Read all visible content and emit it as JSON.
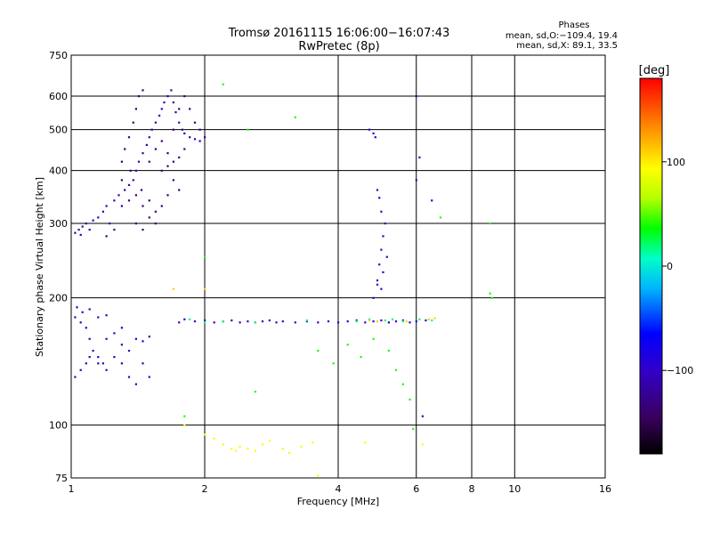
{
  "chart_data": {
    "type": "scatter",
    "title": "Tromsø 20161115 16:06:00−16:07:43",
    "subtitle": "RwPretec (8p)",
    "xlabel": "Frequency [MHz]",
    "ylabel": "Stationary phase Virtual Height [km]",
    "x_scale": "log",
    "y_scale": "log",
    "xlim": [
      1,
      16
    ],
    "ylim": [
      75,
      750
    ],
    "x_ticks": [
      1,
      2,
      4,
      6,
      8,
      10,
      16
    ],
    "x_tick_labels": [
      "1",
      "2",
      "4",
      "6",
      "8",
      "10",
      "16"
    ],
    "y_ticks": [
      75,
      100,
      200,
      300,
      400,
      500,
      600,
      750
    ],
    "y_tick_labels": [
      "75",
      "100",
      "200",
      "300",
      "400",
      "500",
      "600",
      "750"
    ],
    "grid": true,
    "color_variable": "Phase [deg]",
    "colorbar": {
      "label": "[deg]",
      "ticks": [
        -100,
        0,
        100
      ],
      "tick_labels": [
        "−100",
        "0",
        "100"
      ],
      "range": [
        -180,
        180
      ],
      "colors": [
        "#000000",
        "#5a008c",
        "#0000ff",
        "#00ffff",
        "#00ff00",
        "#ffff00",
        "#ff8000",
        "#ff0000"
      ]
    },
    "phase_stats": {
      "header": "Phases",
      "line_o": "mean, sd,O:−109.4, 19.4",
      "line_x": "mean, sd,X:  89.1, 33.5",
      "o_mean": -109.4,
      "o_sd": 19.4,
      "x_mean": 89.1,
      "x_sd": 33.5
    },
    "series": [
      {
        "label_hint": "F-layer trace (blue, O-mode)",
        "phase_deg": -115,
        "points": [
          [
            1.02,
            285
          ],
          [
            1.04,
            290
          ],
          [
            1.05,
            282
          ],
          [
            1.06,
            295
          ],
          [
            1.08,
            300
          ],
          [
            1.1,
            290
          ],
          [
            1.12,
            305
          ],
          [
            1.15,
            310
          ],
          [
            1.18,
            320
          ],
          [
            1.2,
            330
          ],
          [
            1.22,
            300
          ],
          [
            1.25,
            340
          ],
          [
            1.28,
            350
          ],
          [
            1.3,
            330
          ],
          [
            1.32,
            360
          ],
          [
            1.35,
            370
          ],
          [
            1.38,
            380
          ],
          [
            1.4,
            400
          ],
          [
            1.42,
            420
          ],
          [
            1.45,
            440
          ],
          [
            1.48,
            460
          ],
          [
            1.5,
            480
          ],
          [
            1.52,
            500
          ],
          [
            1.55,
            520
          ],
          [
            1.58,
            540
          ],
          [
            1.6,
            560
          ],
          [
            1.62,
            580
          ],
          [
            1.65,
            600
          ],
          [
            1.68,
            620
          ],
          [
            1.7,
            580
          ],
          [
            1.72,
            550
          ],
          [
            1.75,
            520
          ],
          [
            1.78,
            500
          ],
          [
            1.8,
            490
          ],
          [
            1.85,
            480
          ],
          [
            1.9,
            475
          ],
          [
            1.95,
            470
          ],
          [
            2.0,
            480
          ]
        ]
      },
      {
        "label_hint": "F-layer trace (purple)",
        "phase_deg": -135,
        "points": [
          [
            1.3,
            420
          ],
          [
            1.32,
            450
          ],
          [
            1.35,
            480
          ],
          [
            1.38,
            520
          ],
          [
            1.4,
            560
          ],
          [
            1.42,
            600
          ],
          [
            1.45,
            620
          ],
          [
            1.3,
            380
          ],
          [
            1.36,
            400
          ],
          [
            1.44,
            360
          ],
          [
            1.5,
            340
          ],
          [
            1.55,
            320
          ],
          [
            1.6,
            330
          ],
          [
            1.65,
            350
          ],
          [
            1.7,
            380
          ],
          [
            1.75,
            360
          ],
          [
            1.5,
            420
          ],
          [
            1.55,
            450
          ],
          [
            1.6,
            470
          ],
          [
            1.65,
            440
          ],
          [
            1.7,
            500
          ],
          [
            1.75,
            560
          ],
          [
            1.8,
            600
          ],
          [
            1.85,
            560
          ],
          [
            1.9,
            520
          ],
          [
            1.95,
            500
          ],
          [
            1.4,
            300
          ],
          [
            1.45,
            290
          ],
          [
            1.5,
            310
          ],
          [
            1.55,
            300
          ],
          [
            1.25,
            290
          ],
          [
            1.2,
            280
          ],
          [
            1.35,
            340
          ],
          [
            1.4,
            350
          ],
          [
            1.45,
            330
          ],
          [
            1.6,
            400
          ],
          [
            1.65,
            410
          ],
          [
            1.7,
            420
          ],
          [
            1.75,
            430
          ],
          [
            1.8,
            450
          ]
        ]
      },
      {
        "label_hint": "E-layer trace",
        "phase_deg": -110,
        "points": [
          [
            1.02,
            180
          ],
          [
            1.05,
            175
          ],
          [
            1.08,
            170
          ],
          [
            1.1,
            160
          ],
          [
            1.12,
            150
          ],
          [
            1.15,
            145
          ],
          [
            1.18,
            140
          ],
          [
            1.2,
            160
          ],
          [
            1.25,
            165
          ],
          [
            1.3,
            155
          ],
          [
            1.35,
            150
          ],
          [
            1.4,
            160
          ],
          [
            1.45,
            158
          ],
          [
            1.5,
            162
          ],
          [
            1.02,
            130
          ],
          [
            1.05,
            135
          ],
          [
            1.08,
            140
          ],
          [
            1.1,
            145
          ],
          [
            1.15,
            140
          ],
          [
            1.2,
            135
          ],
          [
            1.25,
            145
          ],
          [
            1.3,
            140
          ],
          [
            1.35,
            130
          ],
          [
            1.4,
            125
          ],
          [
            1.03,
            190
          ],
          [
            1.06,
            185
          ],
          [
            1.1,
            188
          ],
          [
            1.15,
            180
          ],
          [
            1.2,
            182
          ],
          [
            1.3,
            170
          ],
          [
            1.45,
            140
          ],
          [
            1.5,
            130
          ]
        ]
      },
      {
        "label_hint": "Sporadic E trace",
        "phase_deg": -100,
        "points": [
          [
            1.75,
            175
          ],
          [
            1.8,
            178
          ],
          [
            1.9,
            176
          ],
          [
            2.0,
            177
          ],
          [
            2.1,
            175
          ],
          [
            2.2,
            176
          ],
          [
            2.3,
            177
          ],
          [
            2.4,
            175
          ],
          [
            2.5,
            176
          ],
          [
            2.6,
            175
          ],
          [
            2.7,
            176
          ],
          [
            2.8,
            177
          ],
          [
            2.9,
            175
          ],
          [
            3.0,
            176
          ],
          [
            3.2,
            175
          ],
          [
            3.4,
            176
          ],
          [
            3.6,
            175
          ],
          [
            3.8,
            176
          ],
          [
            4.0,
            175
          ],
          [
            4.2,
            176
          ],
          [
            4.4,
            177
          ],
          [
            4.6,
            175
          ],
          [
            4.8,
            176
          ],
          [
            5.0,
            177
          ],
          [
            5.2,
            175
          ],
          [
            5.4,
            176
          ],
          [
            5.6,
            177
          ],
          [
            5.8,
            175
          ],
          [
            6.0,
            176
          ],
          [
            6.3,
            177
          ]
        ]
      },
      {
        "label_hint": "Sporadic E trace (cyan/yellow)",
        "phase_deg": 20,
        "points": [
          [
            1.85,
            178
          ],
          [
            2.0,
            175
          ],
          [
            2.2,
            176
          ],
          [
            2.6,
            175
          ],
          [
            3.4,
            177
          ],
          [
            4.4,
            176
          ],
          [
            4.7,
            178
          ],
          [
            5.1,
            177
          ],
          [
            5.3,
            178
          ],
          [
            5.6,
            176
          ],
          [
            6.1,
            178
          ],
          [
            6.5,
            177
          ]
        ]
      },
      {
        "label_hint": "Sporadic E trace (orange)",
        "phase_deg": 110,
        "points": [
          [
            4.7,
            177
          ],
          [
            4.9,
            176
          ],
          [
            5.7,
            176
          ],
          [
            6.4,
            178
          ],
          [
            6.6,
            179
          ],
          [
            1.7,
            210
          ],
          [
            2.0,
            210
          ]
        ]
      },
      {
        "label_hint": "Second-hop trace",
        "phase_deg": -100,
        "points": [
          [
            4.8,
            200
          ],
          [
            4.9,
            220
          ],
          [
            4.95,
            240
          ],
          [
            5.0,
            260
          ],
          [
            5.05,
            280
          ],
          [
            5.1,
            300
          ],
          [
            5.0,
            320
          ],
          [
            4.95,
            345
          ],
          [
            4.9,
            360
          ],
          [
            5.15,
            250
          ],
          [
            5.05,
            230
          ],
          [
            4.9,
            215
          ],
          [
            5.0,
            210
          ],
          [
            4.7,
            500
          ],
          [
            4.8,
            490
          ],
          [
            4.85,
            480
          ],
          [
            6.0,
            380
          ],
          [
            6.1,
            430
          ],
          [
            6.0,
            600
          ],
          [
            6.5,
            340
          ],
          [
            6.2,
            105
          ]
        ]
      },
      {
        "label_hint": "Low-height echoes (yellow/orange)",
        "phase_deg": 95,
        "points": [
          [
            2.0,
            95
          ],
          [
            2.1,
            93
          ],
          [
            2.2,
            90
          ],
          [
            2.3,
            88
          ],
          [
            2.35,
            87
          ],
          [
            2.4,
            89
          ],
          [
            2.5,
            88
          ],
          [
            2.6,
            87
          ],
          [
            2.7,
            90
          ],
          [
            2.8,
            92
          ],
          [
            3.0,
            88
          ],
          [
            3.1,
            86
          ],
          [
            3.3,
            89
          ],
          [
            3.5,
            91
          ],
          [
            3.6,
            76
          ],
          [
            4.6,
            91
          ],
          [
            6.2,
            90
          ],
          [
            1.8,
            100
          ]
        ]
      },
      {
        "label_hint": "Scattered echoes (mixed)",
        "phase_deg": 40,
        "points": [
          [
            3.6,
            150
          ],
          [
            3.9,
            140
          ],
          [
            4.2,
            155
          ],
          [
            4.5,
            145
          ],
          [
            4.8,
            160
          ],
          [
            5.2,
            150
          ],
          [
            5.4,
            135
          ],
          [
            5.6,
            125
          ],
          [
            5.8,
            115
          ],
          [
            5.9,
            98
          ],
          [
            3.2,
            535
          ],
          [
            2.5,
            500
          ],
          [
            6.8,
            310
          ],
          [
            8.8,
            300
          ],
          [
            8.9,
            200
          ],
          [
            8.8,
            205
          ],
          [
            1.8,
            105
          ],
          [
            2.2,
            640
          ],
          [
            2.6,
            120
          ],
          [
            2.0,
            250
          ]
        ]
      }
    ]
  }
}
